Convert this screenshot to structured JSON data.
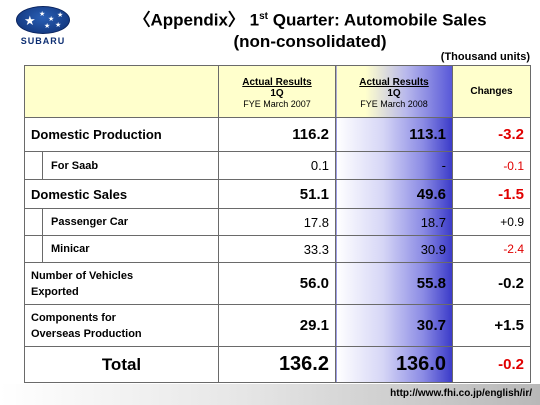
{
  "brand": {
    "logo_text": "SUBARU"
  },
  "header": {
    "title_pre": "〈Appendix〉 1",
    "title_sup": "st",
    "title_post": " Quarter: Automobile Sales",
    "title_line2": "(non-consolidated)"
  },
  "units": "(Thousand units)",
  "columns": {
    "prev": {
      "line1": "Actual Results",
      "line2": "1Q",
      "line3": "FYE March 2007"
    },
    "curr": {
      "line1": "Actual Results",
      "line2": "1Q",
      "line3": "FYE March 2008"
    },
    "changes": "Changes"
  },
  "rows": [
    {
      "label": "Domestic Production",
      "prev": "116.2",
      "curr": "113.1",
      "change": "-3.2"
    },
    {
      "label": "For Saab",
      "prev": "0.1",
      "curr": "-",
      "change": "-0.1"
    },
    {
      "label": "Domestic Sales",
      "prev": "51.1",
      "curr": "49.6",
      "change": "-1.5"
    },
    {
      "label": "Passenger Car",
      "prev": "17.8",
      "curr": "18.7",
      "change": "+0.9"
    },
    {
      "label": "Minicar",
      "prev": "33.3",
      "curr": "30.9",
      "change": "-2.4"
    },
    {
      "label_line1": "Number of Vehicles",
      "label_line2": "Exported",
      "prev": "56.0",
      "curr": "55.8",
      "change": "-0.2"
    },
    {
      "label_line1": "Components for",
      "label_line2": "Overseas Production",
      "prev": "29.1",
      "curr": "30.7",
      "change": "+1.5"
    },
    {
      "label": "Total",
      "prev": "136.2",
      "curr": "136.0",
      "change": "-0.2"
    }
  ],
  "footer": {
    "url": "http://www.fhi.co.jp/english/ir/"
  }
}
